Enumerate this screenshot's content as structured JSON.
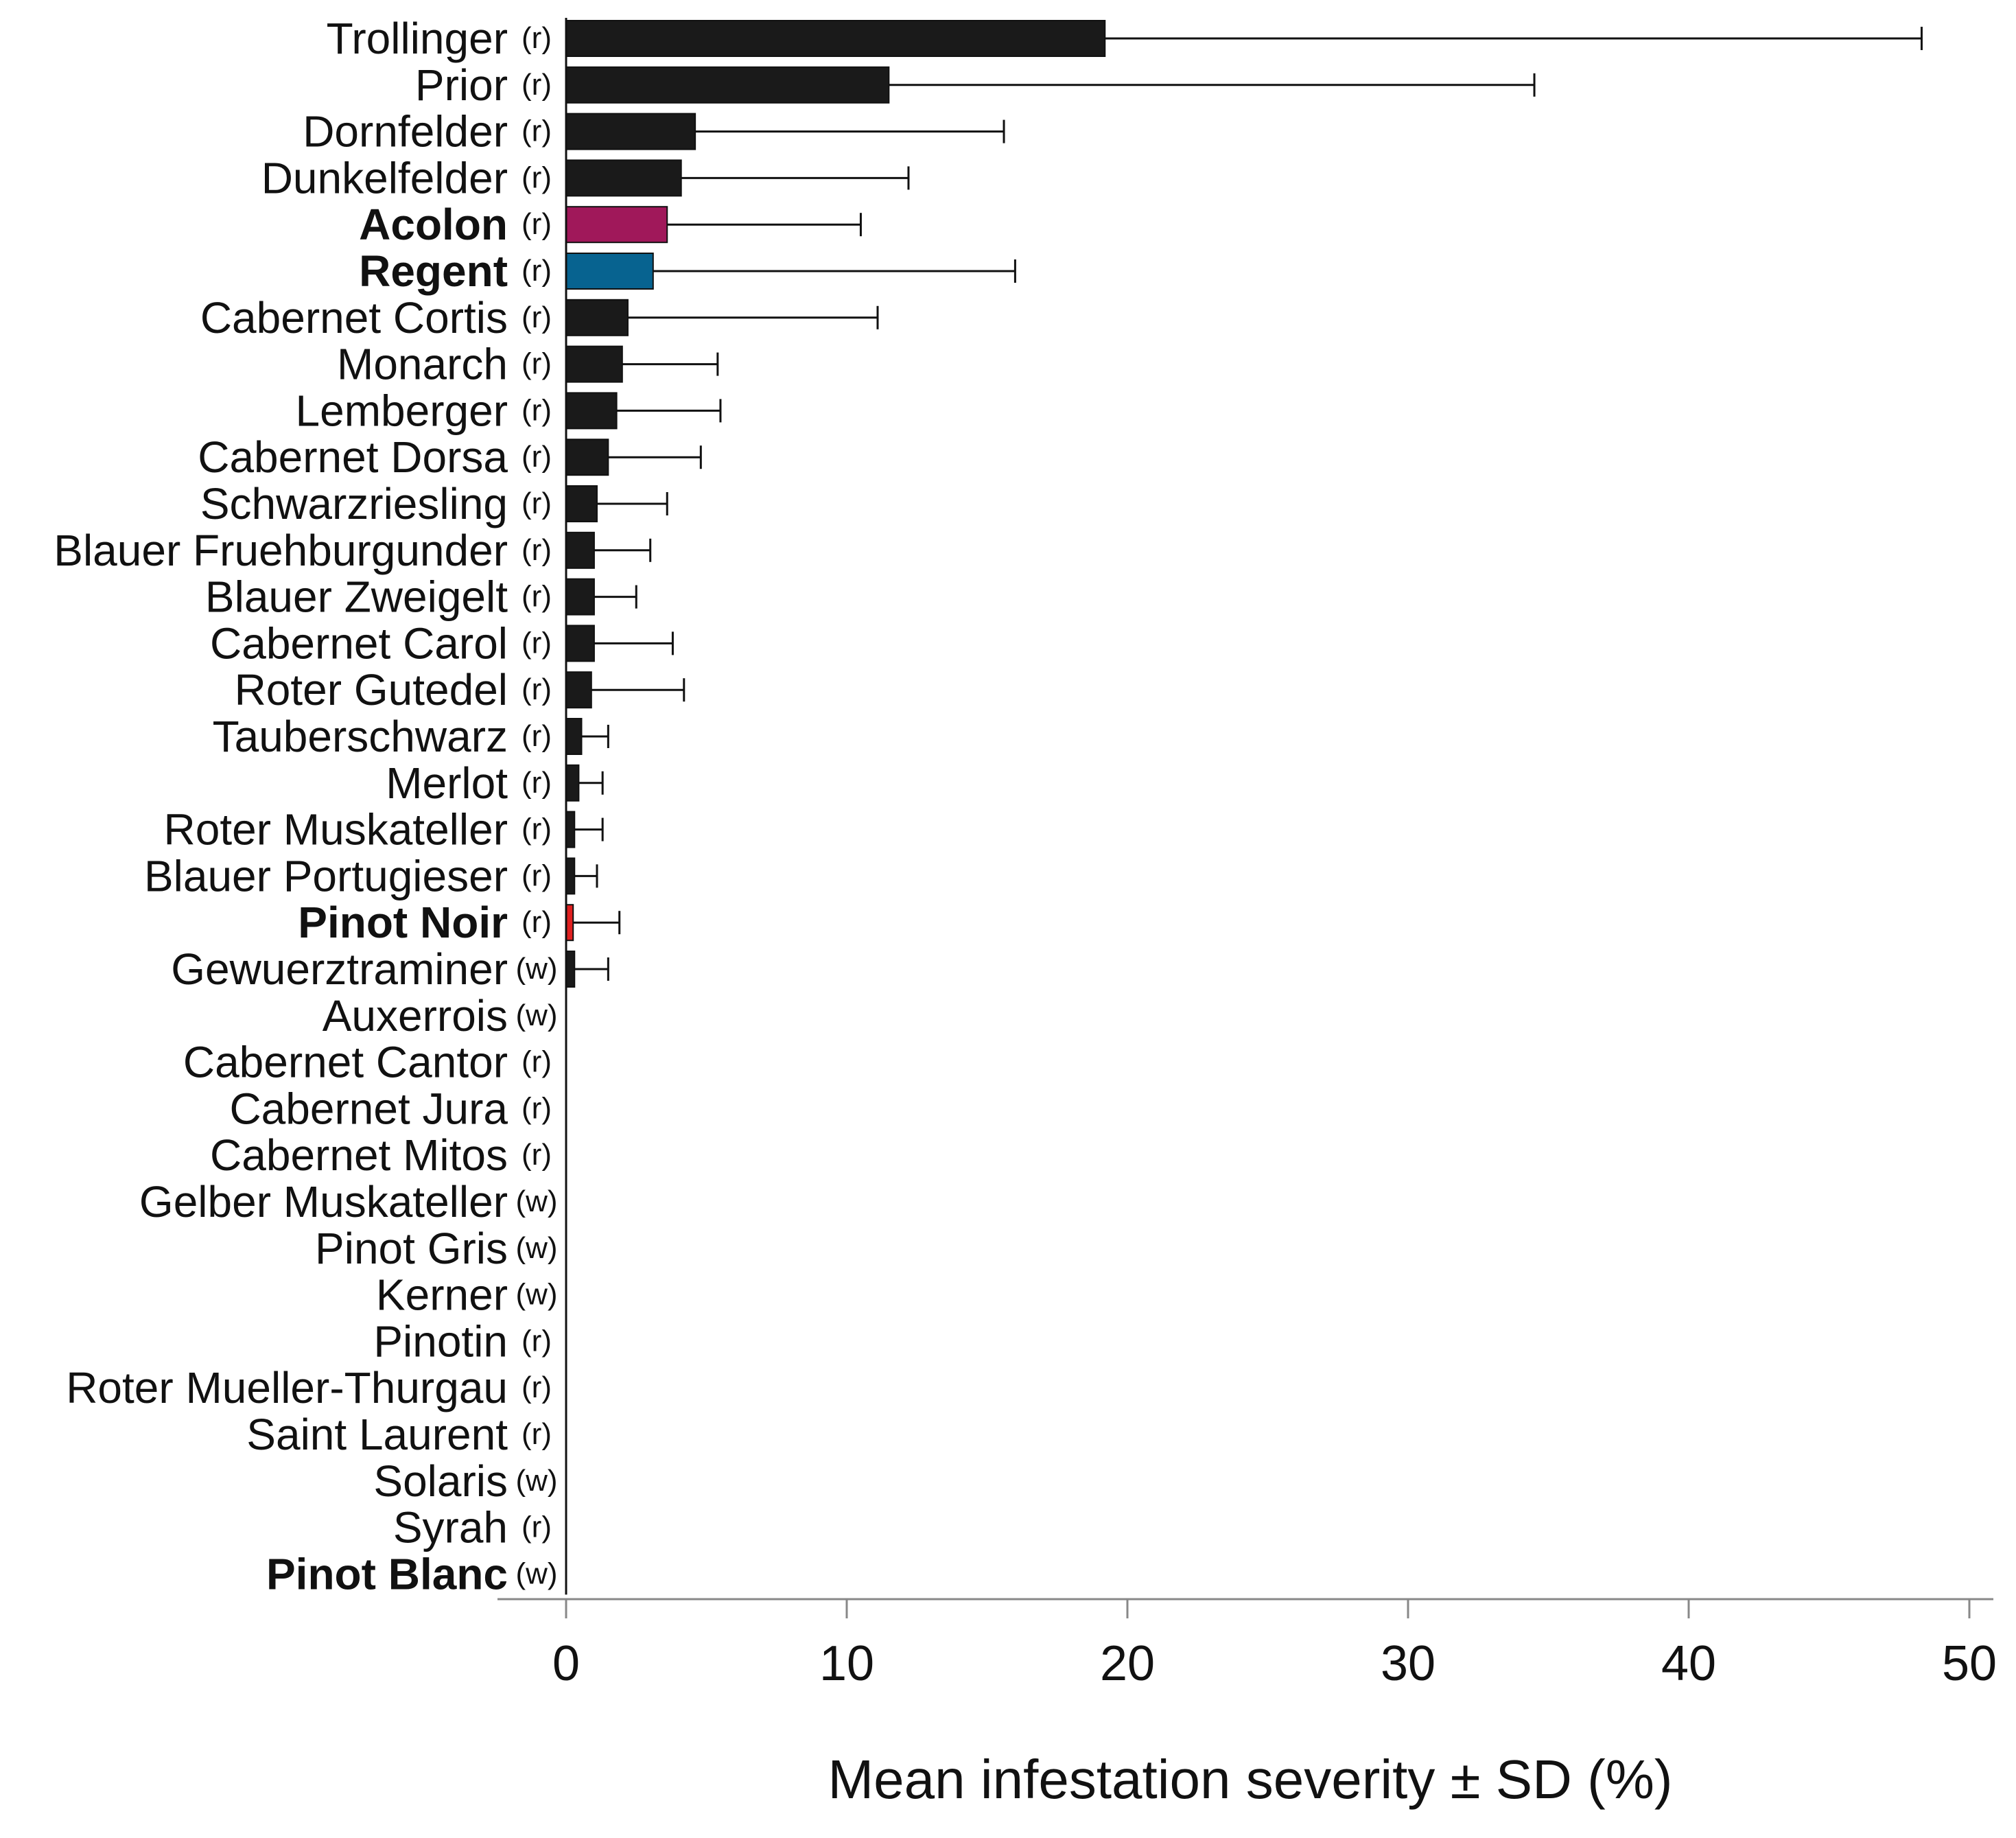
{
  "chart_data": {
    "type": "bar",
    "orientation": "horizontal",
    "title": "",
    "xlabel": "Mean infestation severity ± SD (%)",
    "ylabel": "",
    "xlim": [
      0,
      50
    ],
    "xticks": [
      0,
      10,
      20,
      30,
      40,
      50
    ],
    "grid": false,
    "colors": {
      "default": "#1a1a1a",
      "acolon": "#a0185a",
      "regent": "#076390",
      "pinot_noir": "#e02020",
      "axis": "#888888",
      "errorbar": "#111111"
    },
    "categories": [
      {
        "name": "Trollinger",
        "type": "(r)",
        "mean": 19.2,
        "sd": 29.1,
        "bold": false,
        "color_key": "default"
      },
      {
        "name": "Prior",
        "type": "(r)",
        "mean": 11.5,
        "sd": 23.0,
        "bold": false,
        "color_key": "default"
      },
      {
        "name": "Dornfelder",
        "type": "(r)",
        "mean": 4.6,
        "sd": 11.0,
        "bold": false,
        "color_key": "default"
      },
      {
        "name": "Dunkelfelder",
        "type": "(r)",
        "mean": 4.1,
        "sd": 8.1,
        "bold": false,
        "color_key": "default"
      },
      {
        "name": "Acolon",
        "type": "(r)",
        "mean": 3.6,
        "sd": 6.9,
        "bold": true,
        "color_key": "acolon"
      },
      {
        "name": "Regent",
        "type": "(r)",
        "mean": 3.1,
        "sd": 12.9,
        "bold": true,
        "color_key": "regent"
      },
      {
        "name": "Cabernet Cortis",
        "type": "(r)",
        "mean": 2.2,
        "sd": 8.9,
        "bold": false,
        "color_key": "default"
      },
      {
        "name": "Monarch",
        "type": "(r)",
        "mean": 2.0,
        "sd": 3.4,
        "bold": false,
        "color_key": "default"
      },
      {
        "name": "Lemberger",
        "type": "(r)",
        "mean": 1.8,
        "sd": 3.7,
        "bold": false,
        "color_key": "default"
      },
      {
        "name": "Cabernet Dorsa",
        "type": "(r)",
        "mean": 1.5,
        "sd": 3.3,
        "bold": false,
        "color_key": "default"
      },
      {
        "name": "Schwarzriesling",
        "type": "(r)",
        "mean": 1.1,
        "sd": 2.5,
        "bold": false,
        "color_key": "default"
      },
      {
        "name": "Blauer Fruehburgunder",
        "type": "(r)",
        "mean": 1.0,
        "sd": 2.0,
        "bold": false,
        "color_key": "default"
      },
      {
        "name": "Blauer Zweigelt",
        "type": "(r)",
        "mean": 1.0,
        "sd": 1.5,
        "bold": false,
        "color_key": "default"
      },
      {
        "name": "Cabernet Carol",
        "type": "(r)",
        "mean": 1.0,
        "sd": 2.8,
        "bold": false,
        "color_key": "default"
      },
      {
        "name": "Roter Gutedel",
        "type": "(r)",
        "mean": 0.9,
        "sd": 3.3,
        "bold": false,
        "color_key": "default"
      },
      {
        "name": "Tauberschwarz",
        "type": "(r)",
        "mean": 0.55,
        "sd": 0.95,
        "bold": false,
        "color_key": "default"
      },
      {
        "name": "Merlot",
        "type": "(r)",
        "mean": 0.45,
        "sd": 0.85,
        "bold": false,
        "color_key": "default"
      },
      {
        "name": "Roter Muskateller",
        "type": "(r)",
        "mean": 0.3,
        "sd": 1.0,
        "bold": false,
        "color_key": "default"
      },
      {
        "name": "Blauer Portugieser",
        "type": "(r)",
        "mean": 0.3,
        "sd": 0.8,
        "bold": false,
        "color_key": "default"
      },
      {
        "name": "Pinot Noir",
        "type": "(r)",
        "mean": 0.25,
        "sd": 1.65,
        "bold": true,
        "color_key": "pinot_noir"
      },
      {
        "name": "Gewuerztraminer",
        "type": "(w)",
        "mean": 0.3,
        "sd": 1.2,
        "bold": false,
        "color_key": "default"
      },
      {
        "name": "Auxerrois",
        "type": "(w)",
        "mean": 0,
        "sd": 0,
        "bold": false,
        "color_key": "default"
      },
      {
        "name": "Cabernet Cantor",
        "type": "(r)",
        "mean": 0,
        "sd": 0,
        "bold": false,
        "color_key": "default"
      },
      {
        "name": "Cabernet Jura",
        "type": "(r)",
        "mean": 0,
        "sd": 0,
        "bold": false,
        "color_key": "default"
      },
      {
        "name": "Cabernet Mitos",
        "type": "(r)",
        "mean": 0,
        "sd": 0,
        "bold": false,
        "color_key": "default"
      },
      {
        "name": "Gelber Muskateller",
        "type": "(w)",
        "mean": 0,
        "sd": 0,
        "bold": false,
        "color_key": "default"
      },
      {
        "name": "Pinot Gris",
        "type": "(w)",
        "mean": 0,
        "sd": 0,
        "bold": false,
        "color_key": "default"
      },
      {
        "name": "Kerner",
        "type": "(w)",
        "mean": 0,
        "sd": 0,
        "bold": false,
        "color_key": "default"
      },
      {
        "name": "Pinotin",
        "type": "(r)",
        "mean": 0,
        "sd": 0,
        "bold": false,
        "color_key": "default"
      },
      {
        "name": "Roter Mueller-Thurgau",
        "type": "(r)",
        "mean": 0,
        "sd": 0,
        "bold": false,
        "color_key": "default"
      },
      {
        "name": "Saint Laurent",
        "type": "(r)",
        "mean": 0,
        "sd": 0,
        "bold": false,
        "color_key": "default"
      },
      {
        "name": "Solaris",
        "type": "(w)",
        "mean": 0,
        "sd": 0,
        "bold": false,
        "color_key": "default"
      },
      {
        "name": "Syrah",
        "type": "(r)",
        "mean": 0,
        "sd": 0,
        "bold": false,
        "color_key": "default"
      },
      {
        "name": "Pinot Blanc",
        "type": "(w)",
        "mean": 0,
        "sd": 0,
        "bold": true,
        "color_key": "default"
      }
    ]
  }
}
